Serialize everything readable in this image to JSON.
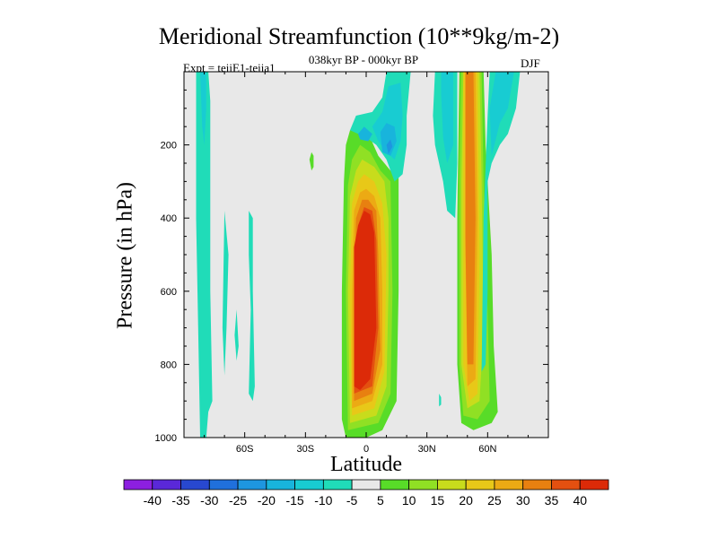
{
  "chart_data": {
    "type": "heatmap",
    "title": "Meridional Streamfunction (10**9kg/m-2)",
    "subtitle": "038kyr BP - 000kyr BP",
    "left_note": "Expt = teiiE1-teiia1",
    "right_note": "DJF",
    "xlabel": "Latitude",
    "ylabel": "Pressure (in hPa)",
    "xlim": [
      -90,
      90
    ],
    "ylim": [
      0,
      1000
    ],
    "y_inverted": true,
    "x_ticks": [
      {
        "value": -60,
        "label": "60S"
      },
      {
        "value": -30,
        "label": "30S"
      },
      {
        "value": 0,
        "label": "0"
      },
      {
        "value": 30,
        "label": "30N"
      },
      {
        "value": 60,
        "label": "60N"
      }
    ],
    "y_ticks": [
      {
        "value": 200,
        "label": "200"
      },
      {
        "value": 400,
        "label": "400"
      },
      {
        "value": 600,
        "label": "600"
      },
      {
        "value": 800,
        "label": "800"
      },
      {
        "value": 1000,
        "label": "1000"
      }
    ],
    "background_color": "#e8e8e8",
    "colorbar": {
      "labels": [
        "-40",
        "-35",
        "-30",
        "-25",
        "-20",
        "-15",
        "-10",
        "-5",
        "5",
        "10",
        "15",
        "20",
        "25",
        "30",
        "35",
        "40"
      ],
      "colors": [
        "#8c1fe0",
        "#5a28d8",
        "#2848d0",
        "#2070dc",
        "#1e96e0",
        "#18b4dc",
        "#18ccd2",
        "#20dcb8",
        "#e8e8e8",
        "#58dc28",
        "#90e024",
        "#c8dc1c",
        "#e8c818",
        "#ecaa14",
        "#e88010",
        "#e45010",
        "#dc2a08"
      ]
    },
    "contours": [
      {
        "name": "tropical-cell-outer",
        "level": 5,
        "color": "#58dc28",
        "points": [
          [
            -10,
            1000
          ],
          [
            -12,
            950
          ],
          [
            -12,
            600
          ],
          [
            -11,
            300
          ],
          [
            -10,
            200
          ],
          [
            -8,
            160
          ],
          [
            -3,
            150
          ],
          [
            2,
            180
          ],
          [
            6,
            230
          ],
          [
            12,
            270
          ],
          [
            16,
            290
          ],
          [
            16,
            600
          ],
          [
            15,
            900
          ],
          [
            8,
            980
          ],
          [
            0,
            1000
          ]
        ]
      },
      {
        "name": "tropical-cell-10",
        "level": 10,
        "color": "#90e024",
        "points": [
          [
            -9,
            980
          ],
          [
            -10,
            600
          ],
          [
            -9,
            310
          ],
          [
            -7,
            240
          ],
          [
            -3,
            200
          ],
          [
            2,
            220
          ],
          [
            7,
            270
          ],
          [
            12,
            300
          ],
          [
            13,
            600
          ],
          [
            12,
            880
          ],
          [
            6,
            960
          ]
        ]
      },
      {
        "name": "tropical-cell-15",
        "level": 15,
        "color": "#c8dc1c",
        "points": [
          [
            -8,
            960
          ],
          [
            -9,
            600
          ],
          [
            -8,
            340
          ],
          [
            -5,
            270
          ],
          [
            -2,
            240
          ],
          [
            4,
            260
          ],
          [
            9,
            300
          ],
          [
            11,
            400
          ],
          [
            11,
            600
          ],
          [
            10,
            860
          ],
          [
            5,
            940
          ]
        ]
      },
      {
        "name": "tropical-cell-20",
        "level": 20,
        "color": "#e8c818",
        "points": [
          [
            -7,
            940
          ],
          [
            -8,
            600
          ],
          [
            -7,
            360
          ],
          [
            -4,
            300
          ],
          [
            -1,
            280
          ],
          [
            4,
            300
          ],
          [
            8,
            360
          ],
          [
            10,
            500
          ],
          [
            9,
            820
          ],
          [
            4,
            920
          ]
        ]
      },
      {
        "name": "tropical-cell-25",
        "level": 25,
        "color": "#ecaa14",
        "points": [
          [
            -7,
            920
          ],
          [
            -7,
            600
          ],
          [
            -6,
            380
          ],
          [
            -3,
            330
          ],
          [
            0,
            320
          ],
          [
            4,
            340
          ],
          [
            7,
            400
          ],
          [
            8,
            600
          ],
          [
            8,
            800
          ],
          [
            3,
            900
          ]
        ]
      },
      {
        "name": "tropical-cell-30",
        "level": 30,
        "color": "#e88010",
        "points": [
          [
            -6,
            900
          ],
          [
            -6,
            600
          ],
          [
            -5,
            400
          ],
          [
            -2,
            350
          ],
          [
            1,
            350
          ],
          [
            5,
            380
          ],
          [
            6,
            500
          ],
          [
            7,
            760
          ],
          [
            3,
            880
          ]
        ]
      },
      {
        "name": "tropical-cell-35",
        "level": 35,
        "color": "#e45010",
        "points": [
          [
            -6,
            880
          ],
          [
            -6,
            500
          ],
          [
            -4,
            420
          ],
          [
            -1,
            370
          ],
          [
            3,
            380
          ],
          [
            5,
            460
          ],
          [
            6,
            700
          ],
          [
            3,
            860
          ]
        ]
      },
      {
        "name": "tropical-cell-core",
        "level": 40,
        "color": "#dc2a08",
        "points": [
          [
            -6,
            860
          ],
          [
            -6,
            480
          ],
          [
            -4,
            420
          ],
          [
            -1,
            380
          ],
          [
            2,
            390
          ],
          [
            4,
            440
          ],
          [
            5,
            700
          ],
          [
            2,
            840
          ],
          [
            -3,
            870
          ]
        ]
      },
      {
        "name": "midlat-band-outer",
        "level": 5,
        "color": "#58dc28",
        "points": [
          [
            46,
            0
          ],
          [
            58,
            0
          ],
          [
            59,
            200
          ],
          [
            62,
            500
          ],
          [
            63,
            750
          ],
          [
            65,
            930
          ],
          [
            62,
            960
          ],
          [
            53,
            980
          ],
          [
            47,
            960
          ],
          [
            45,
            800
          ],
          [
            45,
            400
          ]
        ]
      },
      {
        "name": "midlat-band-10",
        "level": 10,
        "color": "#90e024",
        "points": [
          [
            47,
            0
          ],
          [
            57,
            0
          ],
          [
            58,
            300
          ],
          [
            60,
            650
          ],
          [
            61,
            900
          ],
          [
            55,
            950
          ],
          [
            48,
            940
          ],
          [
            46,
            800
          ],
          [
            46,
            300
          ]
        ]
      },
      {
        "name": "midlat-band-15",
        "level": 15,
        "color": "#c8dc1c",
        "points": [
          [
            48,
            0
          ],
          [
            56,
            0
          ],
          [
            57,
            300
          ],
          [
            58,
            700
          ],
          [
            56,
            900
          ],
          [
            50,
            920
          ],
          [
            47,
            800
          ],
          [
            47,
            300
          ]
        ]
      },
      {
        "name": "midlat-band-20",
        "level": 20,
        "color": "#e8c818",
        "points": [
          [
            48,
            0
          ],
          [
            55,
            0
          ],
          [
            56,
            500
          ],
          [
            55,
            880
          ],
          [
            51,
            900
          ],
          [
            48,
            800
          ],
          [
            48,
            300
          ]
        ]
      },
      {
        "name": "midlat-band-25",
        "level": 25,
        "color": "#ecaa14",
        "points": [
          [
            49,
            0
          ],
          [
            54,
            0
          ],
          [
            55,
            400
          ],
          [
            54,
            840
          ],
          [
            50,
            860
          ],
          [
            49,
            500
          ]
        ]
      },
      {
        "name": "midlat-band-core",
        "level": 30,
        "color": "#e88010",
        "points": [
          [
            49,
            0
          ],
          [
            53,
            0
          ],
          [
            54,
            400
          ],
          [
            53,
            800
          ],
          [
            50,
            800
          ],
          [
            49,
            450
          ]
        ]
      },
      {
        "name": "upper-minimum-outer",
        "level": -5,
        "color": "#20dcb8",
        "points": [
          [
            -8,
            160
          ],
          [
            -5,
            120
          ],
          [
            3,
            110
          ],
          [
            8,
            70
          ],
          [
            10,
            0
          ],
          [
            22,
            0
          ],
          [
            20,
            120
          ],
          [
            20,
            200
          ],
          [
            18,
            280
          ],
          [
            14,
            300
          ],
          [
            10,
            240
          ],
          [
            5,
            200
          ],
          [
            0,
            180
          ]
        ]
      },
      {
        "name": "upper-minimum-10",
        "level": -10,
        "color": "#18ccd2",
        "points": [
          [
            3,
            150
          ],
          [
            8,
            110
          ],
          [
            11,
            40
          ],
          [
            17,
            30
          ],
          [
            18,
            120
          ],
          [
            17,
            190
          ],
          [
            14,
            240
          ],
          [
            10,
            220
          ],
          [
            6,
            190
          ]
        ]
      },
      {
        "name": "upper-minimum-15",
        "level": -15,
        "color": "#18b4dc",
        "points": [
          [
            -4,
            170
          ],
          [
            -1,
            150
          ],
          [
            3,
            170
          ],
          [
            1,
            190
          ],
          [
            -3,
            185
          ]
        ]
      },
      {
        "name": "upper-minimum-15b",
        "level": -15,
        "color": "#18b4dc",
        "points": [
          [
            7,
            165
          ],
          [
            10,
            140
          ],
          [
            14,
            150
          ],
          [
            15,
            190
          ],
          [
            12,
            230
          ],
          [
            8,
            220
          ]
        ]
      },
      {
        "name": "upper-minimum-core",
        "level": -20,
        "color": "#1e96e0",
        "points": [
          [
            10,
            200
          ],
          [
            12,
            185
          ],
          [
            13,
            205
          ],
          [
            11,
            225
          ]
        ]
      },
      {
        "name": "neg-band-east",
        "level": -5,
        "color": "#20dcb8",
        "points": [
          [
            34,
            0
          ],
          [
            45,
            0
          ],
          [
            45,
            250
          ],
          [
            44,
            400
          ],
          [
            40,
            380
          ],
          [
            38,
            300
          ],
          [
            36,
            250
          ],
          [
            34,
            200
          ],
          [
            33,
            120
          ]
        ]
      },
      {
        "name": "neg-band-east-10",
        "level": -10,
        "color": "#18ccd2",
        "points": [
          [
            37,
            0
          ],
          [
            43,
            0
          ],
          [
            43,
            200
          ],
          [
            40,
            250
          ],
          [
            38,
            180
          ],
          [
            37,
            60
          ]
        ]
      },
      {
        "name": "neg-band-north",
        "level": -5,
        "color": "#20dcb8",
        "points": [
          [
            61,
            0
          ],
          [
            76,
            0
          ],
          [
            74,
            100
          ],
          [
            70,
            170
          ],
          [
            66,
            200
          ],
          [
            62,
            250
          ],
          [
            60,
            300
          ],
          [
            60,
            600
          ],
          [
            59,
            800
          ],
          [
            57,
            820
          ],
          [
            58,
            400
          ],
          [
            60,
            120
          ]
        ]
      },
      {
        "name": "neg-band-north-10",
        "level": -10,
        "color": "#18ccd2",
        "points": [
          [
            64,
            0
          ],
          [
            73,
            0
          ],
          [
            70,
            100
          ],
          [
            66,
            140
          ],
          [
            62,
            230
          ],
          [
            61,
            100
          ]
        ]
      },
      {
        "name": "neg-south-polar",
        "level": -5,
        "color": "#20dcb8",
        "points": [
          [
            -84,
            0
          ],
          [
            -78,
            0
          ],
          [
            -77,
            80
          ],
          [
            -77,
            250
          ],
          [
            -77,
            600
          ],
          [
            -76,
            900
          ],
          [
            -78,
            930
          ],
          [
            -79,
            1000
          ],
          [
            -82,
            1000
          ],
          [
            -83,
            700
          ],
          [
            -84,
            400
          ]
        ]
      },
      {
        "name": "neg-south-polar-10",
        "level": -10,
        "color": "#18ccd2",
        "points": [
          [
            -82,
            0
          ],
          [
            -79,
            0
          ],
          [
            -79,
            100
          ],
          [
            -80,
            200
          ],
          [
            -81,
            150
          ]
        ]
      },
      {
        "name": "neg-south-mid",
        "level": -5,
        "color": "#20dcb8",
        "points": [
          [
            -70,
            380
          ],
          [
            -68,
            500
          ],
          [
            -69,
            700
          ],
          [
            -70,
            830
          ],
          [
            -71,
            700
          ]
        ]
      },
      {
        "name": "neg-south-sub",
        "level": -5,
        "color": "#20dcb8",
        "points": [
          [
            -58,
            380
          ],
          [
            -56,
            400
          ],
          [
            -56,
            600
          ],
          [
            -55,
            860
          ],
          [
            -56,
            900
          ],
          [
            -58,
            880
          ],
          [
            -57,
            650
          ],
          [
            -58,
            500
          ]
        ]
      },
      {
        "name": "neg-south-thin",
        "level": -5,
        "color": "#20dcb8",
        "points": [
          [
            -64,
            650
          ],
          [
            -63,
            750
          ],
          [
            -64,
            790
          ],
          [
            -65,
            720
          ]
        ]
      },
      {
        "name": "pos-speck",
        "level": 5,
        "color": "#58dc28",
        "points": [
          [
            -27,
            220
          ],
          [
            -26,
            230
          ],
          [
            -26,
            260
          ],
          [
            -27,
            270
          ],
          [
            -28,
            240
          ]
        ]
      },
      {
        "name": "neg-east-speck",
        "level": -5,
        "color": "#20dcb8",
        "points": [
          [
            36,
            880
          ],
          [
            37,
            890
          ],
          [
            37,
            910
          ],
          [
            36,
            915
          ]
        ]
      }
    ]
  }
}
